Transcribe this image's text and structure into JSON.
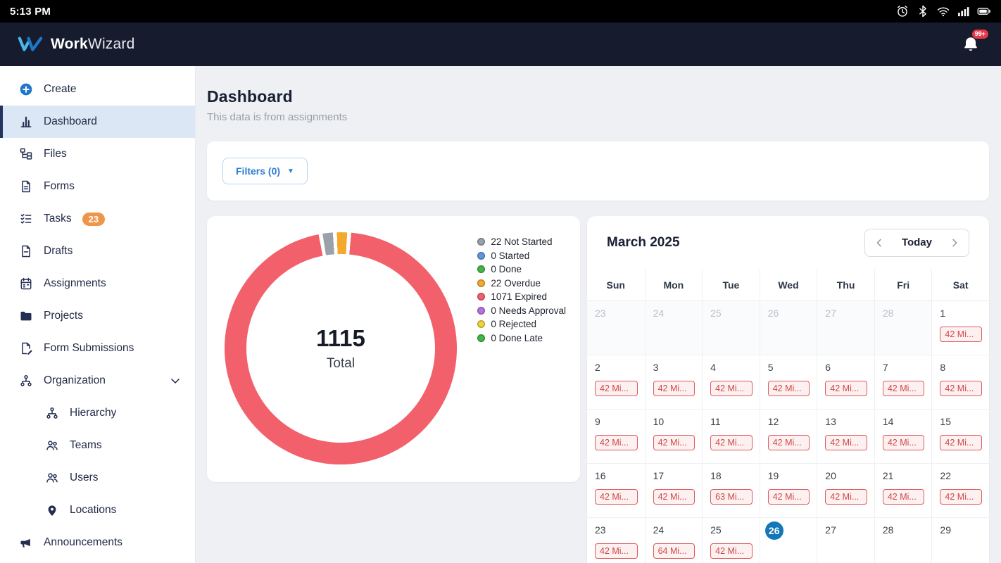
{
  "status_bar": {
    "time": "5:13 PM",
    "icons": [
      "alarm-clock",
      "bluetooth",
      "wifi",
      "signal",
      "battery"
    ]
  },
  "header": {
    "brand_bold": "Work",
    "brand_light": "Wizard",
    "notification_badge": "99+"
  },
  "sidebar": {
    "items": [
      {
        "label": "Create",
        "icon": "plus-circle"
      },
      {
        "label": "Dashboard",
        "icon": "bar-chart",
        "active": true
      },
      {
        "label": "Files",
        "icon": "file-tree"
      },
      {
        "label": "Forms",
        "icon": "document"
      },
      {
        "label": "Tasks",
        "icon": "checklist",
        "badge": "23"
      },
      {
        "label": "Drafts",
        "icon": "draft"
      },
      {
        "label": "Assignments",
        "icon": "calendar"
      },
      {
        "label": "Projects",
        "icon": "folder"
      },
      {
        "label": "Form Submissions",
        "icon": "form-edit"
      },
      {
        "label": "Organization",
        "icon": "org",
        "chevron": true
      },
      {
        "label": "Hierarchy",
        "icon": "hierarchy",
        "indent": true
      },
      {
        "label": "Teams",
        "icon": "team",
        "indent": true
      },
      {
        "label": "Users",
        "icon": "users",
        "indent": true
      },
      {
        "label": "Locations",
        "icon": "pin",
        "indent": true
      },
      {
        "label": "Announcements",
        "icon": "megaphone"
      }
    ]
  },
  "main": {
    "title": "Dashboard",
    "subtitle": "This data is from assignments",
    "filters_label": "Filters (0)"
  },
  "chart_data": {
    "type": "pie",
    "title": "Assignment status donut",
    "total_value": "1115",
    "total_label": "Total",
    "legend_position": "right",
    "legend": [
      {
        "label": "22 Not Started",
        "value": 22,
        "color": "#9aa1a8"
      },
      {
        "label": "0 Started",
        "value": 0,
        "color": "#5e96e0"
      },
      {
        "label": "0 Done",
        "value": 0,
        "color": "#43b649"
      },
      {
        "label": "22 Overdue",
        "value": 22,
        "color": "#f5a92c"
      },
      {
        "label": "1071 Expired",
        "value": 1071,
        "color": "#f2606b"
      },
      {
        "label": "0 Needs Approval",
        "value": 0,
        "color": "#b672dd"
      },
      {
        "label": "0 Rejected",
        "value": 0,
        "color": "#f2d23c"
      },
      {
        "label": "0 Done Late",
        "value": 0,
        "color": "#43b649"
      }
    ]
  },
  "calendar": {
    "month": "March 2025",
    "today_label": "Today",
    "day_headers": [
      "Sun",
      "Mon",
      "Tue",
      "Wed",
      "Thu",
      "Fri",
      "Sat"
    ],
    "weeks": [
      [
        {
          "day": "23",
          "other": true
        },
        {
          "day": "24",
          "other": true
        },
        {
          "day": "25",
          "other": true
        },
        {
          "day": "26",
          "other": true
        },
        {
          "day": "27",
          "other": true
        },
        {
          "day": "28",
          "other": true
        },
        {
          "day": "1",
          "badge": "42 Mi..."
        }
      ],
      [
        {
          "day": "2",
          "badge": "42 Mi..."
        },
        {
          "day": "3",
          "badge": "42 Mi..."
        },
        {
          "day": "4",
          "badge": "42 Mi..."
        },
        {
          "day": "5",
          "badge": "42 Mi..."
        },
        {
          "day": "6",
          "badge": "42 Mi..."
        },
        {
          "day": "7",
          "badge": "42 Mi..."
        },
        {
          "day": "8",
          "badge": "42 Mi..."
        }
      ],
      [
        {
          "day": "9",
          "badge": "42 Mi..."
        },
        {
          "day": "10",
          "badge": "42 Mi..."
        },
        {
          "day": "11",
          "badge": "42 Mi..."
        },
        {
          "day": "12",
          "badge": "42 Mi..."
        },
        {
          "day": "13",
          "badge": "42 Mi..."
        },
        {
          "day": "14",
          "badge": "42 Mi..."
        },
        {
          "day": "15",
          "badge": "42 Mi..."
        }
      ],
      [
        {
          "day": "16",
          "badge": "42 Mi..."
        },
        {
          "day": "17",
          "badge": "42 Mi..."
        },
        {
          "day": "18",
          "badge": "63 Mi..."
        },
        {
          "day": "19",
          "badge": "42 Mi..."
        },
        {
          "day": "20",
          "badge": "42 Mi..."
        },
        {
          "day": "21",
          "badge": "42 Mi..."
        },
        {
          "day": "22",
          "badge": "42 Mi..."
        }
      ],
      [
        {
          "day": "23",
          "badge": "42 Mi..."
        },
        {
          "day": "24",
          "badge": "64 Mi..."
        },
        {
          "day": "25",
          "badge": "42 Mi..."
        },
        {
          "day": "26",
          "today": true
        },
        {
          "day": "27"
        },
        {
          "day": "28"
        },
        {
          "day": "29"
        }
      ]
    ]
  }
}
